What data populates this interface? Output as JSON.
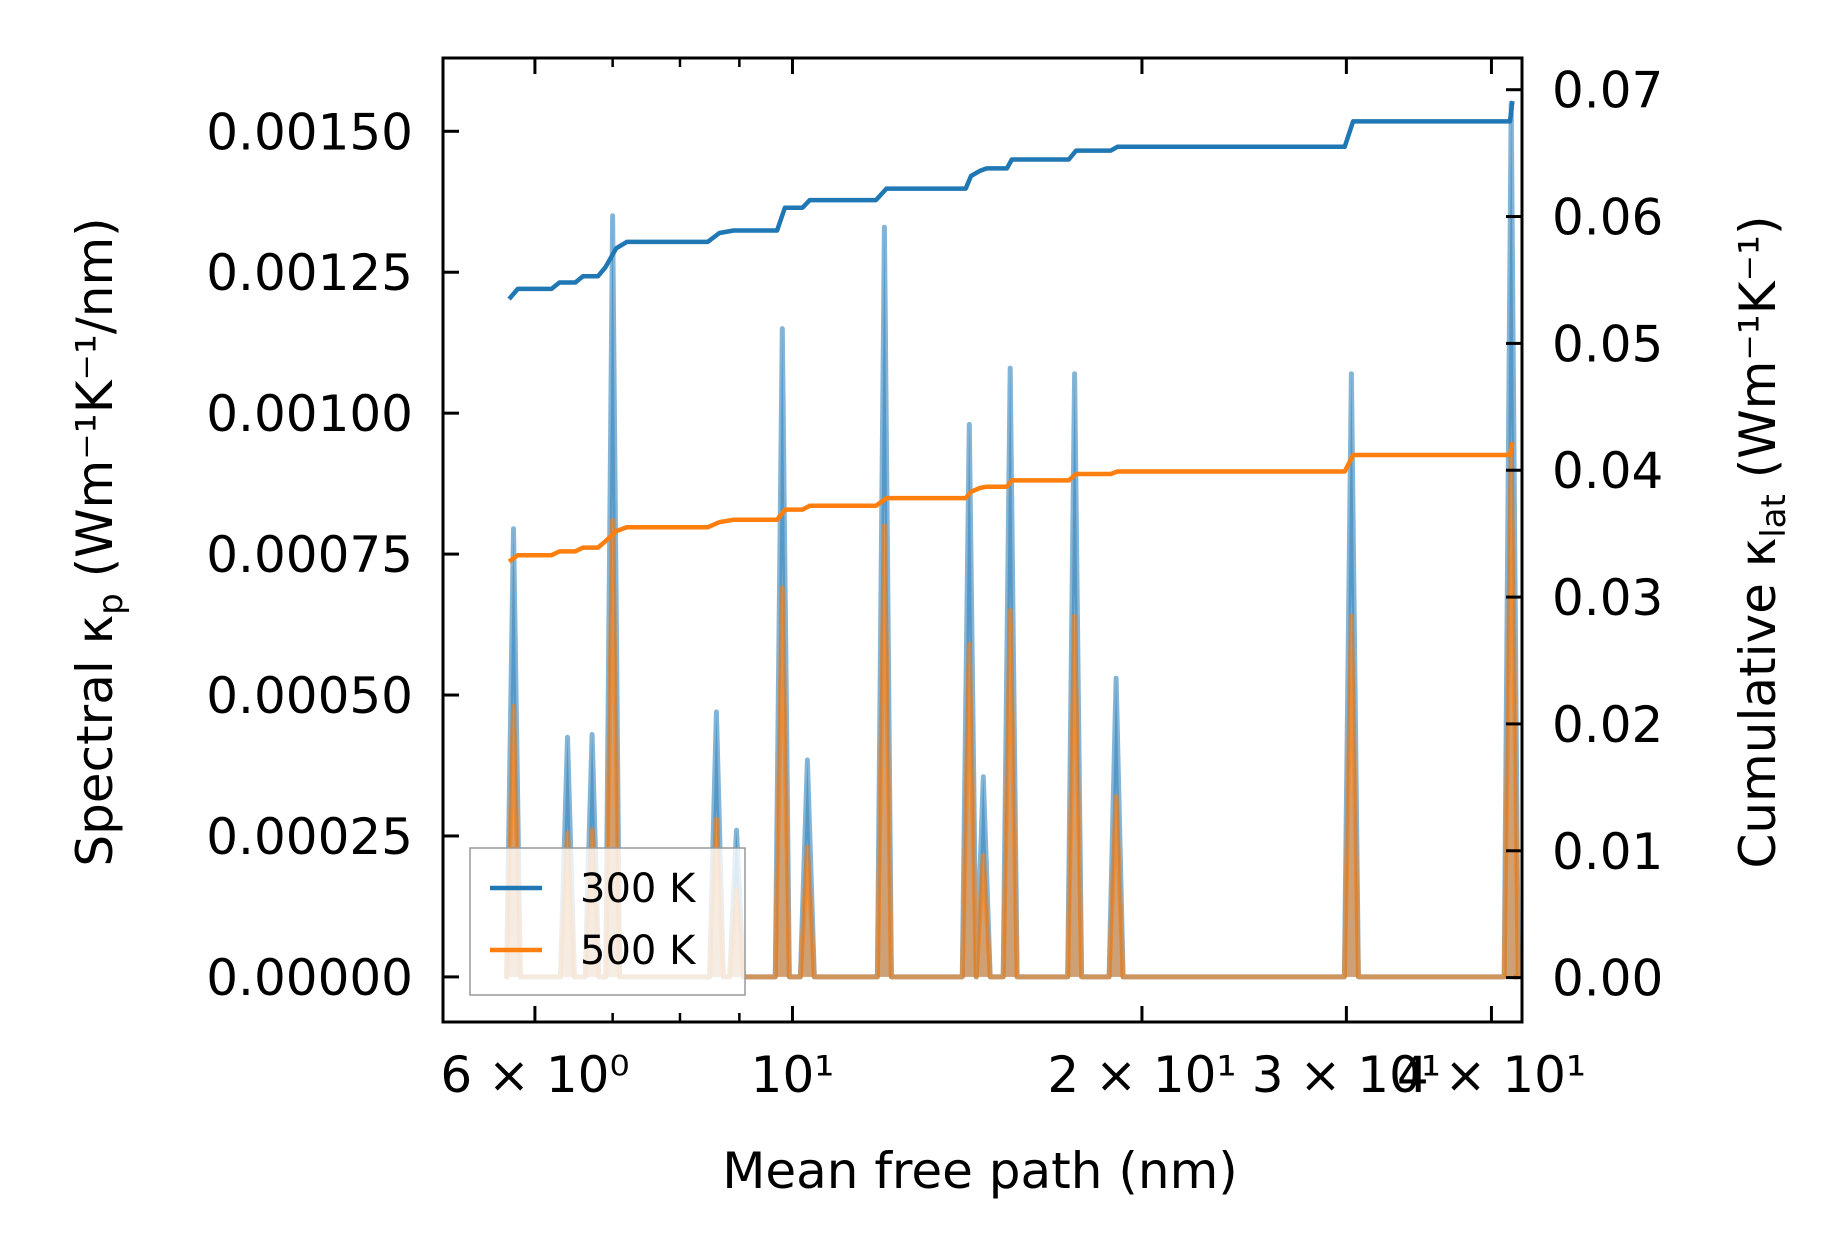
{
  "chart_data": {
    "type": "line",
    "title": "",
    "xlabel": "Mean free path (nm)",
    "x_scale": "log",
    "xlim": [
      5.0,
      42.5
    ],
    "x_ticks": [
      {
        "value": 6,
        "label": "6 × 10⁰"
      },
      {
        "value": 10,
        "label": "10¹"
      },
      {
        "value": 20,
        "label": "2 × 10¹"
      },
      {
        "value": 30,
        "label": "3 × 10¹"
      },
      {
        "value": 40,
        "label": "4 × 10¹"
      }
    ],
    "y_left": {
      "label_main": "Spectral κ",
      "label_sub": "p",
      "label_rest": " (Wm⁻¹K⁻¹/nm)",
      "ylim": [
        -8e-05,
        0.00163
      ],
      "ticks": [
        "0.00000",
        "0.00025",
        "0.00050",
        "0.00075",
        "0.00100",
        "0.00125",
        "0.00150"
      ],
      "tick_values": [
        0,
        0.00025,
        0.0005,
        0.00075,
        0.001,
        0.00125,
        0.0015
      ]
    },
    "y_right": {
      "label_main": "Cumulative κ",
      "label_sub": "lat",
      "label_rest": " (Wm⁻¹K⁻¹)",
      "ylim": [
        -0.0035,
        0.0725
      ],
      "ticks": [
        "0.00",
        "0.01",
        "0.02",
        "0.03",
        "0.04",
        "0.05",
        "0.06",
        "0.07"
      ],
      "tick_values": [
        0,
        0.01,
        0.02,
        0.03,
        0.04,
        0.05,
        0.06,
        0.07
      ]
    },
    "legend": {
      "location": "lower-left",
      "entries": [
        "300 K",
        "500 K"
      ]
    },
    "series": [
      {
        "name": "300 K",
        "color": "#1f77b4",
        "spectral_peaks": [
          {
            "x": 5.75,
            "y": 0.000795
          },
          {
            "x": 6.4,
            "y": 0.000425
          },
          {
            "x": 6.72,
            "y": 0.00043
          },
          {
            "x": 7.0,
            "y": 0.00135
          },
          {
            "x": 8.6,
            "y": 0.00047
          },
          {
            "x": 8.95,
            "y": 0.00026
          },
          {
            "x": 9.8,
            "y": 0.00115
          },
          {
            "x": 10.3,
            "y": 0.000385
          },
          {
            "x": 12.0,
            "y": 0.00133
          },
          {
            "x": 14.2,
            "y": 0.00098
          },
          {
            "x": 14.6,
            "y": 0.000355
          },
          {
            "x": 15.4,
            "y": 0.00108
          },
          {
            "x": 17.5,
            "y": 0.00107
          },
          {
            "x": 19.0,
            "y": 0.00053
          },
          {
            "x": 30.3,
            "y": 0.00107
          },
          {
            "x": 41.6,
            "y": 0.00155
          }
        ],
        "cumulative": [
          [
            5.7,
            0.0535
          ],
          [
            5.8,
            0.0543
          ],
          [
            6.2,
            0.0543
          ],
          [
            6.3,
            0.0548
          ],
          [
            6.5,
            0.0548
          ],
          [
            6.6,
            0.0553
          ],
          [
            6.8,
            0.0553
          ],
          [
            6.9,
            0.056
          ],
          [
            7.05,
            0.0575
          ],
          [
            7.2,
            0.058
          ],
          [
            8.45,
            0.058
          ],
          [
            8.65,
            0.0587
          ],
          [
            8.9,
            0.0589
          ],
          [
            9.7,
            0.0589
          ],
          [
            9.85,
            0.0607
          ],
          [
            10.2,
            0.0607
          ],
          [
            10.35,
            0.0613
          ],
          [
            11.8,
            0.0613
          ],
          [
            12.05,
            0.0622
          ],
          [
            14.1,
            0.0622
          ],
          [
            14.25,
            0.0632
          ],
          [
            14.5,
            0.0636
          ],
          [
            14.7,
            0.0638
          ],
          [
            15.3,
            0.0638
          ],
          [
            15.45,
            0.0645
          ],
          [
            17.3,
            0.0645
          ],
          [
            17.55,
            0.0652
          ],
          [
            18.8,
            0.0652
          ],
          [
            19.05,
            0.0655
          ],
          [
            29.9,
            0.0655
          ],
          [
            30.4,
            0.0675
          ],
          [
            41.5,
            0.0675
          ],
          [
            41.7,
            0.0691
          ]
        ]
      },
      {
        "name": "500 K",
        "color": "#ff7f0e",
        "spectral_peaks": [
          {
            "x": 5.75,
            "y": 0.00048
          },
          {
            "x": 6.4,
            "y": 0.000255
          },
          {
            "x": 6.72,
            "y": 0.00026
          },
          {
            "x": 7.0,
            "y": 0.00081
          },
          {
            "x": 8.6,
            "y": 0.00028
          },
          {
            "x": 8.95,
            "y": 0.000155
          },
          {
            "x": 9.8,
            "y": 0.00069
          },
          {
            "x": 10.3,
            "y": 0.00023
          },
          {
            "x": 12.0,
            "y": 0.0008
          },
          {
            "x": 14.2,
            "y": 0.00059
          },
          {
            "x": 14.6,
            "y": 0.000215
          },
          {
            "x": 15.4,
            "y": 0.00065
          },
          {
            "x": 17.5,
            "y": 0.00064
          },
          {
            "x": 19.0,
            "y": 0.00032
          },
          {
            "x": 30.3,
            "y": 0.00064
          },
          {
            "x": 41.6,
            "y": 0.00093
          }
        ],
        "cumulative": [
          [
            5.7,
            0.0328
          ],
          [
            5.8,
            0.0333
          ],
          [
            6.2,
            0.0333
          ],
          [
            6.3,
            0.0336
          ],
          [
            6.5,
            0.0336
          ],
          [
            6.6,
            0.0339
          ],
          [
            6.8,
            0.0339
          ],
          [
            6.9,
            0.0344
          ],
          [
            7.05,
            0.0352
          ],
          [
            7.2,
            0.0355
          ],
          [
            8.45,
            0.0355
          ],
          [
            8.65,
            0.0359
          ],
          [
            8.9,
            0.0361
          ],
          [
            9.7,
            0.0361
          ],
          [
            9.85,
            0.0369
          ],
          [
            10.2,
            0.0369
          ],
          [
            10.35,
            0.0372
          ],
          [
            11.8,
            0.0372
          ],
          [
            12.05,
            0.0378
          ],
          [
            14.1,
            0.0378
          ],
          [
            14.25,
            0.0383
          ],
          [
            14.5,
            0.0386
          ],
          [
            14.7,
            0.0387
          ],
          [
            15.3,
            0.0387
          ],
          [
            15.45,
            0.0392
          ],
          [
            17.3,
            0.0392
          ],
          [
            17.55,
            0.0397
          ],
          [
            18.8,
            0.0397
          ],
          [
            19.05,
            0.0399
          ],
          [
            29.9,
            0.0399
          ],
          [
            30.4,
            0.0412
          ],
          [
            41.5,
            0.0412
          ],
          [
            41.7,
            0.0422
          ]
        ]
      }
    ]
  }
}
